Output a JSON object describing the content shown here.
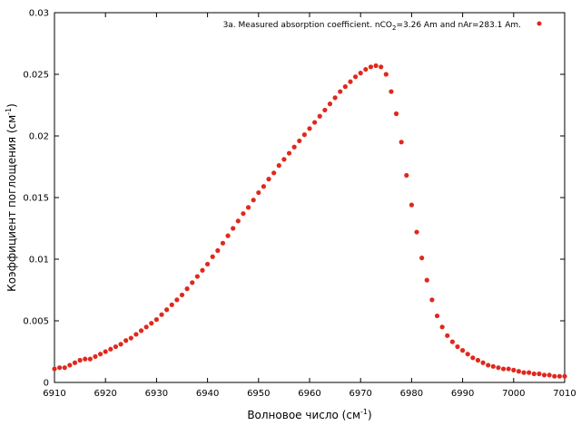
{
  "chart_data": {
    "type": "scatter",
    "legend_placement": "top-right",
    "xlabel": {
      "main": "Волновое число (см",
      "sup": "-1",
      "tail": ")"
    },
    "ylabel": {
      "main": "Коэффициент поглощения (см",
      "sup": "-1",
      "tail": ")"
    },
    "legend": {
      "prefix": "3a. Measured absorption coefficient. nCO",
      "sub": "2",
      "suffix": "=3.26 Am and nAr=283.1 Am."
    },
    "xlim": [
      6910,
      7010
    ],
    "ylim": [
      0,
      0.03
    ],
    "xticks": [
      6910,
      6920,
      6930,
      6940,
      6950,
      6960,
      6970,
      6980,
      6990,
      7000,
      7010
    ],
    "yticks": [
      0,
      0.005,
      0.01,
      0.015,
      0.02,
      0.025,
      0.03
    ],
    "xtick_labels": [
      "6910",
      "6920",
      "6930",
      "6940",
      "6950",
      "6960",
      "6970",
      "6980",
      "6990",
      "7000",
      "7010"
    ],
    "ytick_labels": [
      "0",
      "0.005",
      "0.01",
      "0.015",
      "0.02",
      "0.025",
      "0.03"
    ],
    "grid": false,
    "series": [
      {
        "color": "#e0281c",
        "marker": "circle",
        "points": [
          [
            6910,
            0.0011
          ],
          [
            6911,
            0.0012
          ],
          [
            6912,
            0.0012
          ],
          [
            6913,
            0.0014
          ],
          [
            6914,
            0.0016
          ],
          [
            6915,
            0.0018
          ],
          [
            6916,
            0.0019
          ],
          [
            6917,
            0.0019
          ],
          [
            6918,
            0.0021
          ],
          [
            6919,
            0.0023
          ],
          [
            6920,
            0.0025
          ],
          [
            6921,
            0.0027
          ],
          [
            6922,
            0.0029
          ],
          [
            6923,
            0.0031
          ],
          [
            6924,
            0.0034
          ],
          [
            6925,
            0.0036
          ],
          [
            6926,
            0.0039
          ],
          [
            6927,
            0.0042
          ],
          [
            6928,
            0.0045
          ],
          [
            6929,
            0.0048
          ],
          [
            6930,
            0.0051
          ],
          [
            6931,
            0.0055
          ],
          [
            6932,
            0.0059
          ],
          [
            6933,
            0.0063
          ],
          [
            6934,
            0.0067
          ],
          [
            6935,
            0.0071
          ],
          [
            6936,
            0.0076
          ],
          [
            6937,
            0.0081
          ],
          [
            6938,
            0.0086
          ],
          [
            6939,
            0.0091
          ],
          [
            6940,
            0.0096
          ],
          [
            6941,
            0.0102
          ],
          [
            6942,
            0.0107
          ],
          [
            6943,
            0.0113
          ],
          [
            6944,
            0.0119
          ],
          [
            6945,
            0.0125
          ],
          [
            6946,
            0.0131
          ],
          [
            6947,
            0.0137
          ],
          [
            6948,
            0.0142
          ],
          [
            6949,
            0.0148
          ],
          [
            6950,
            0.0154
          ],
          [
            6951,
            0.0159
          ],
          [
            6952,
            0.0165
          ],
          [
            6953,
            0.017
          ],
          [
            6954,
            0.0176
          ],
          [
            6955,
            0.0181
          ],
          [
            6956,
            0.0186
          ],
          [
            6957,
            0.0191
          ],
          [
            6958,
            0.0196
          ],
          [
            6959,
            0.0201
          ],
          [
            6960,
            0.0206
          ],
          [
            6961,
            0.0211
          ],
          [
            6962,
            0.0216
          ],
          [
            6963,
            0.0221
          ],
          [
            6964,
            0.0226
          ],
          [
            6965,
            0.0231
          ],
          [
            6966,
            0.0236
          ],
          [
            6967,
            0.024
          ],
          [
            6968,
            0.0244
          ],
          [
            6969,
            0.0248
          ],
          [
            6970,
            0.0251
          ],
          [
            6971,
            0.0254
          ],
          [
            6972,
            0.0256
          ],
          [
            6973,
            0.0257
          ],
          [
            6974,
            0.0256
          ],
          [
            6975,
            0.025
          ],
          [
            6976,
            0.0236
          ],
          [
            6977,
            0.0218
          ],
          [
            6978,
            0.0195
          ],
          [
            6979,
            0.0168
          ],
          [
            6980,
            0.0144
          ],
          [
            6981,
            0.0122
          ],
          [
            6982,
            0.0101
          ],
          [
            6983,
            0.0083
          ],
          [
            6984,
            0.0067
          ],
          [
            6985,
            0.0054
          ],
          [
            6986,
            0.0045
          ],
          [
            6987,
            0.0038
          ],
          [
            6988,
            0.0033
          ],
          [
            6989,
            0.0029
          ],
          [
            6990,
            0.0026
          ],
          [
            6991,
            0.0023
          ],
          [
            6992,
            0.002
          ],
          [
            6993,
            0.0018
          ],
          [
            6994,
            0.0016
          ],
          [
            6995,
            0.0014
          ],
          [
            6996,
            0.0013
          ],
          [
            6997,
            0.0012
          ],
          [
            6998,
            0.0011
          ],
          [
            6999,
            0.0011
          ],
          [
            7000,
            0.001
          ],
          [
            7001,
            0.0009
          ],
          [
            7002,
            0.0008
          ],
          [
            7003,
            0.0008
          ],
          [
            7004,
            0.0007
          ],
          [
            7005,
            0.0007
          ],
          [
            7006,
            0.0006
          ],
          [
            7007,
            0.0006
          ],
          [
            7008,
            0.0005
          ],
          [
            7009,
            0.0005
          ],
          [
            7010,
            0.0005
          ]
        ]
      }
    ]
  }
}
